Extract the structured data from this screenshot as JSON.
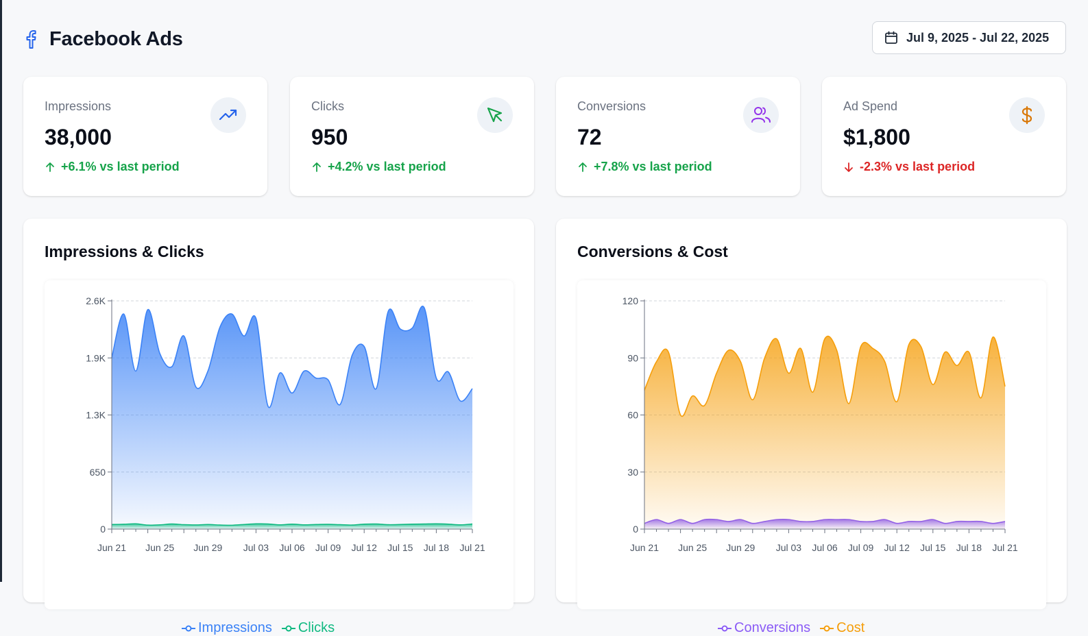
{
  "header": {
    "title": "Facebook Ads",
    "date_range": "Jul 9, 2025 - Jul 22, 2025"
  },
  "icons": {
    "brand": "facebook-icon",
    "calendar": "calendar-icon"
  },
  "kpis": [
    {
      "label": "Impressions",
      "value": "38,000",
      "change": "+6.1% vs last period",
      "trend": "up",
      "icon": "trending-up-icon",
      "icon_color": "#2563eb"
    },
    {
      "label": "Clicks",
      "value": "950",
      "change": "+4.2% vs last period",
      "trend": "up",
      "icon": "cursor-icon",
      "icon_color": "#16a34a"
    },
    {
      "label": "Conversions",
      "value": "72",
      "change": "+7.8% vs last period",
      "trend": "up",
      "icon": "users-icon",
      "icon_color": "#9333ea"
    },
    {
      "label": "Ad Spend",
      "value": "$1,800",
      "change": "-2.3% vs last period",
      "trend": "down",
      "icon": "dollar-icon",
      "icon_color": "#d97706"
    }
  ],
  "colors": {
    "up": "#16a34a",
    "down": "#dc2626",
    "impressions": "#3b82f6",
    "clicks": "#10b981",
    "conversions": "#8b5cf6",
    "cost": "#f59e0b"
  },
  "chart_data": [
    {
      "type": "area",
      "title": "Impressions & Clicks",
      "x": [
        "Jun 21",
        "Jun 22",
        "Jun 23",
        "Jun 24",
        "Jun 25",
        "Jun 26",
        "Jun 27",
        "Jun 28",
        "Jun 29",
        "Jun 30",
        "Jul 01",
        "Jul 02",
        "Jul 03",
        "Jul 04",
        "Jul 05",
        "Jul 06",
        "Jul 07",
        "Jul 08",
        "Jul 09",
        "Jul 10",
        "Jul 11",
        "Jul 12",
        "Jul 13",
        "Jul 14",
        "Jul 15",
        "Jul 16",
        "Jul 17",
        "Jul 18",
        "Jul 19",
        "Jul 20",
        "Jul 21"
      ],
      "x_ticks": [
        "Jun 21",
        "Jun 25",
        "Jun 29",
        "Jul 03",
        "Jul 06",
        "Jul 09",
        "Jul 12",
        "Jul 15",
        "Jul 18",
        "Jul 21"
      ],
      "y_ticks": [
        "0",
        "650",
        "1.3K",
        "1.9K",
        "2.6K"
      ],
      "ylim": [
        0,
        2600
      ],
      "grid": true,
      "legend_position": "bottom",
      "series": [
        {
          "name": "Impressions",
          "color": "#3b82f6",
          "values": [
            1950,
            2450,
            1800,
            2500,
            2000,
            1850,
            2200,
            1620,
            1800,
            2300,
            2450,
            2200,
            2400,
            1400,
            1780,
            1550,
            1800,
            1720,
            1700,
            1420,
            1980,
            2080,
            1600,
            2480,
            2280,
            2290,
            2520,
            1720,
            1790,
            1460,
            1600
          ]
        },
        {
          "name": "Clicks",
          "color": "#10b981",
          "values": [
            52,
            55,
            60,
            45,
            48,
            58,
            50,
            47,
            52,
            46,
            44,
            52,
            60,
            58,
            48,
            56,
            48,
            52,
            54,
            50,
            46,
            56,
            58,
            50,
            52,
            56,
            58,
            60,
            56,
            48,
            58
          ]
        }
      ]
    },
    {
      "type": "area",
      "title": "Conversions & Cost",
      "x": [
        "Jun 21",
        "Jun 22",
        "Jun 23",
        "Jun 24",
        "Jun 25",
        "Jun 26",
        "Jun 27",
        "Jun 28",
        "Jun 29",
        "Jun 30",
        "Jul 01",
        "Jul 02",
        "Jul 03",
        "Jul 04",
        "Jul 05",
        "Jul 06",
        "Jul 07",
        "Jul 08",
        "Jul 09",
        "Jul 10",
        "Jul 11",
        "Jul 12",
        "Jul 13",
        "Jul 14",
        "Jul 15",
        "Jul 16",
        "Jul 17",
        "Jul 18",
        "Jul 19",
        "Jul 20",
        "Jul 21"
      ],
      "x_ticks": [
        "Jun 21",
        "Jun 25",
        "Jun 29",
        "Jul 03",
        "Jul 06",
        "Jul 09",
        "Jul 12",
        "Jul 15",
        "Jul 18",
        "Jul 21"
      ],
      "y_ticks": [
        "0",
        "30",
        "60",
        "90",
        "120"
      ],
      "ylim": [
        0,
        120
      ],
      "grid": true,
      "legend_position": "bottom",
      "series": [
        {
          "name": "Conversions",
          "color": "#8b5cf6",
          "values": [
            3,
            5,
            3,
            5,
            3,
            5,
            5,
            4,
            5,
            3,
            4,
            5,
            5,
            4,
            4,
            5,
            5,
            5,
            4,
            4,
            5,
            3,
            4,
            4,
            5,
            3,
            4,
            4,
            4,
            3,
            4
          ]
        },
        {
          "name": "Cost",
          "color": "#f59e0b",
          "values": [
            73,
            88,
            93,
            60,
            70,
            65,
            82,
            94,
            88,
            68,
            90,
            100,
            82,
            95,
            72,
            100,
            94,
            66,
            96,
            95,
            88,
            67,
            97,
            96,
            76,
            93,
            86,
            93,
            69,
            101,
            75
          ]
        }
      ]
    }
  ]
}
